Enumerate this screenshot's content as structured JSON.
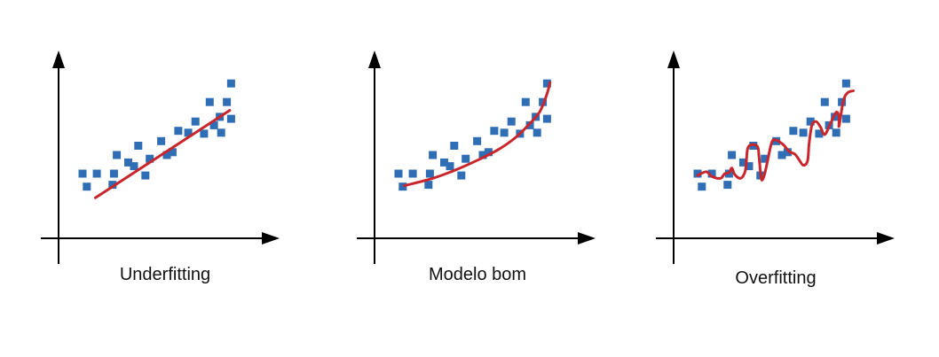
{
  "colors": {
    "axis": "#000000",
    "point": "#2f6db5",
    "curve": "#c9262c"
  },
  "points": [
    [
      0.0,
      1.0
    ],
    [
      0.15,
      0.3
    ],
    [
      0.5,
      1.0
    ],
    [
      1.05,
      0.4
    ],
    [
      1.1,
      1.0
    ],
    [
      1.2,
      2.0
    ],
    [
      1.6,
      1.6
    ],
    [
      1.8,
      1.4
    ],
    [
      1.95,
      2.5
    ],
    [
      2.2,
      0.9
    ],
    [
      2.35,
      1.8
    ],
    [
      2.75,
      2.75
    ],
    [
      2.95,
      2.0
    ],
    [
      3.15,
      2.15
    ],
    [
      3.35,
      3.3
    ],
    [
      3.7,
      3.2
    ],
    [
      3.95,
      3.8
    ],
    [
      4.25,
      3.15
    ],
    [
      4.45,
      4.85
    ],
    [
      4.6,
      3.6
    ],
    [
      4.8,
      4.05
    ],
    [
      4.85,
      3.2
    ],
    [
      5.05,
      4.85
    ],
    [
      5.2,
      3.95
    ],
    [
      5.2,
      5.85
    ]
  ],
  "panels": [
    {
      "caption": "Underfitting",
      "fit": "linear",
      "curve": [
        [
          0.45,
          -0.3
        ],
        [
          5.15,
          4.4
        ]
      ]
    },
    {
      "caption": "Modelo bom",
      "fit": "smooth",
      "curve": [
        [
          0.2,
          0.35
        ],
        [
          1.2,
          0.75
        ],
        [
          2.0,
          1.2
        ],
        [
          2.8,
          1.75
        ],
        [
          3.5,
          2.3
        ],
        [
          4.1,
          2.95
        ],
        [
          4.6,
          3.7
        ],
        [
          4.95,
          4.35
        ],
        [
          5.2,
          5.3
        ],
        [
          5.3,
          5.9
        ]
      ]
    },
    {
      "caption": "Overfitting",
      "fit": "wiggly",
      "curve": [
        [
          0.0,
          0.9
        ],
        [
          0.3,
          1.1
        ],
        [
          0.5,
          0.85
        ],
        [
          0.8,
          0.75
        ],
        [
          0.95,
          1.0
        ],
        [
          1.1,
          1.05
        ],
        [
          1.2,
          1.3
        ],
        [
          1.3,
          0.95
        ],
        [
          1.5,
          0.75
        ],
        [
          1.65,
          1.05
        ],
        [
          1.7,
          1.5
        ],
        [
          1.75,
          2.35
        ],
        [
          1.9,
          2.55
        ],
        [
          2.1,
          2.45
        ],
        [
          2.15,
          1.9
        ],
        [
          2.2,
          1.1
        ],
        [
          2.25,
          0.65
        ],
        [
          2.35,
          1.0
        ],
        [
          2.45,
          1.7
        ],
        [
          2.6,
          2.7
        ],
        [
          2.75,
          2.8
        ],
        [
          3.0,
          2.55
        ],
        [
          3.2,
          2.2
        ],
        [
          3.4,
          2.05
        ],
        [
          3.55,
          1.75
        ],
        [
          3.7,
          1.45
        ],
        [
          3.85,
          1.7
        ],
        [
          3.9,
          2.6
        ],
        [
          4.0,
          3.6
        ],
        [
          4.15,
          3.8
        ],
        [
          4.3,
          3.5
        ],
        [
          4.45,
          3.1
        ],
        [
          4.65,
          3.7
        ],
        [
          4.85,
          4.3
        ],
        [
          4.95,
          4.05
        ],
        [
          4.95,
          3.55
        ],
        [
          5.1,
          4.9
        ],
        [
          5.25,
          5.35
        ],
        [
          5.45,
          5.45
        ]
      ]
    }
  ]
}
